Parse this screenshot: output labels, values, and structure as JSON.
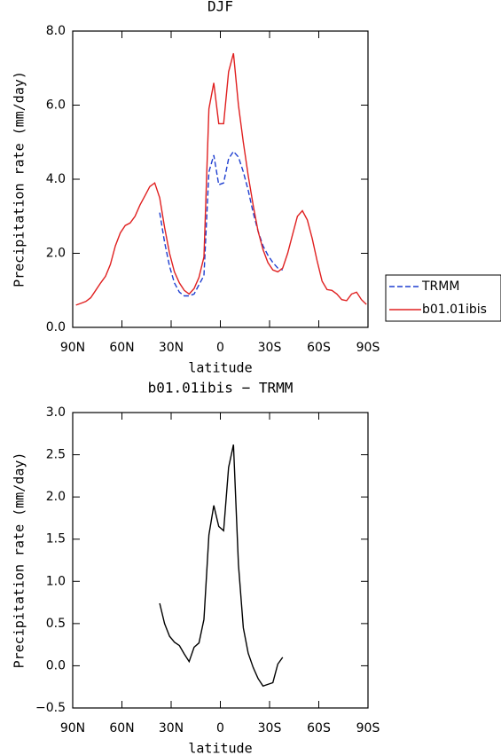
{
  "chart_data": [
    {
      "type": "line",
      "title": "DJF",
      "xlabel": "latitude",
      "ylabel": "Precipitation rate (mm/day)",
      "x": [
        88,
        85,
        82,
        79,
        76,
        73,
        70,
        67,
        64,
        61,
        58,
        55,
        52,
        49,
        46,
        43,
        40,
        37,
        34,
        31,
        28,
        25,
        22,
        19,
        16,
        13,
        10,
        7,
        4,
        1,
        -2,
        -5,
        -8,
        -11,
        -14,
        -17,
        -20,
        -23,
        -26,
        -29,
        -32,
        -35,
        -38,
        -41,
        -44,
        -47,
        -50,
        -53,
        -56,
        -59,
        -62,
        -65,
        -68,
        -71,
        -74,
        -77,
        -80,
        -83,
        -86,
        -89
      ],
      "series": [
        {
          "name": "TRMM",
          "color": "#1f3fd0",
          "style": "dashed",
          "values": [
            null,
            null,
            null,
            null,
            null,
            null,
            null,
            null,
            null,
            null,
            null,
            null,
            null,
            null,
            null,
            null,
            null,
            3.1,
            2.3,
            1.65,
            1.2,
            0.95,
            0.85,
            0.85,
            0.9,
            1.15,
            1.4,
            4.2,
            4.65,
            3.85,
            3.9,
            4.55,
            4.75,
            4.6,
            4.2,
            3.7,
            3.1,
            2.6,
            2.2,
            1.95,
            1.75,
            1.6,
            1.55,
            null,
            null,
            null,
            null,
            null,
            null,
            null,
            null,
            null,
            null,
            null,
            null,
            null,
            null,
            null,
            null,
            null
          ]
        },
        {
          "name": "b01.01ibis",
          "color": "#e02020",
          "style": "solid",
          "values": [
            0.6,
            0.65,
            0.7,
            0.8,
            1.0,
            1.2,
            1.38,
            1.7,
            2.2,
            2.55,
            2.75,
            2.82,
            3.0,
            3.3,
            3.55,
            3.8,
            3.9,
            3.5,
            2.7,
            2.0,
            1.5,
            1.2,
            1.0,
            0.9,
            1.05,
            1.35,
            1.9,
            5.9,
            6.6,
            5.5,
            5.5,
            6.9,
            7.4,
            6.0,
            5.0,
            4.1,
            3.3,
            2.6,
            2.1,
            1.75,
            1.55,
            1.5,
            1.6,
            2.0,
            2.5,
            3.0,
            3.15,
            2.9,
            2.4,
            1.8,
            1.25,
            1.02,
            1.0,
            0.9,
            0.75,
            0.72,
            0.9,
            0.95,
            0.75,
            0.62
          ]
        }
      ],
      "xlim": [
        90,
        -90
      ],
      "xticks": [
        {
          "value": 90,
          "label": "90N"
        },
        {
          "value": 60,
          "label": "60N"
        },
        {
          "value": 30,
          "label": "30N"
        },
        0,
        {
          "value": -30,
          "label": "30S"
        },
        {
          "value": -60,
          "label": "60S"
        },
        {
          "value": -90,
          "label": "90S"
        }
      ],
      "ylim": [
        0,
        8
      ],
      "yticks": [
        {
          "value": 0,
          "label": "0.0"
        },
        {
          "value": 2,
          "label": "2.0"
        },
        {
          "value": 4,
          "label": "4.0"
        },
        {
          "value": 6,
          "label": "6.0"
        },
        {
          "value": 8,
          "label": "8.0"
        }
      ],
      "legend": "right"
    },
    {
      "type": "line",
      "title": "b01.01ibis − TRMM",
      "xlabel": "latitude",
      "ylabel": "Precipitation rate (mm/day)",
      "x": [
        37,
        34,
        31,
        28,
        25,
        22,
        19,
        16,
        13,
        10,
        7,
        4,
        1,
        -2,
        -5,
        -8,
        -11,
        -14,
        -17,
        -20,
        -23,
        -26,
        -29,
        -32,
        -35,
        -38
      ],
      "series": [
        {
          "color": "#000000",
          "style": "solid",
          "values": [
            0.74,
            0.5,
            0.35,
            0.28,
            0.24,
            0.14,
            0.05,
            0.22,
            0.27,
            0.55,
            1.55,
            1.9,
            1.65,
            1.6,
            2.35,
            2.62,
            1.2,
            0.45,
            0.15,
            -0.02,
            -0.15,
            -0.24,
            -0.22,
            -0.2,
            0.02,
            0.1
          ]
        }
      ],
      "xlim": [
        90,
        -90
      ],
      "xticks": [
        {
          "value": 90,
          "label": "90N"
        },
        {
          "value": 60,
          "label": "60N"
        },
        {
          "value": 30,
          "label": "30N"
        },
        0,
        {
          "value": -30,
          "label": "30S"
        },
        {
          "value": -60,
          "label": "60S"
        },
        {
          "value": -90,
          "label": "90S"
        }
      ],
      "ylim": [
        -0.5,
        3
      ],
      "yticks": [
        {
          "value": -0.5,
          "label": "−0.5"
        },
        {
          "value": 0,
          "label": "0.0"
        },
        {
          "value": 0.5,
          "label": "0.5"
        },
        {
          "value": 1,
          "label": "1.0"
        },
        {
          "value": 1.5,
          "label": "1.5"
        },
        {
          "value": 2,
          "label": "2.0"
        },
        {
          "value": 2.5,
          "label": "2.5"
        },
        {
          "value": 3,
          "label": "3.0"
        }
      ]
    }
  ]
}
